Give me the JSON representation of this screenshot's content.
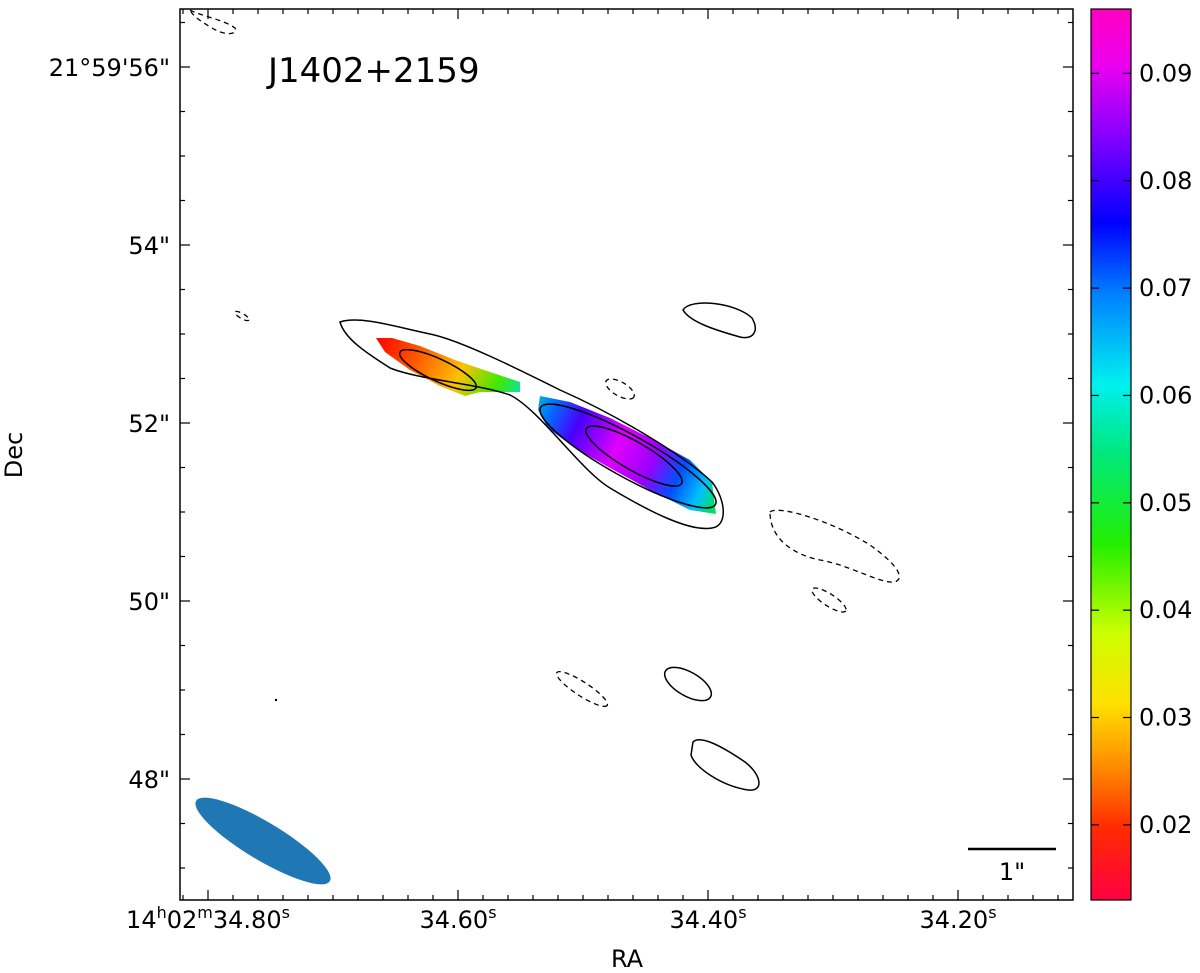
{
  "chart_data": {
    "type": "heatmap",
    "title": "J1402+2159",
    "xlabel": "RA",
    "ylabel": "Dec",
    "x_ticks": [
      {
        "h": "14",
        "m": "02",
        "s": "34.80",
        "value_sec": 34.8
      },
      {
        "s": "34.60",
        "value_sec": 34.6
      },
      {
        "s": "34.40",
        "value_sec": 34.4
      },
      {
        "s": "34.20",
        "value_sec": 34.2
      }
    ],
    "y_ticks": [
      {
        "label": "21°59'56\"",
        "value_arcsec": 56
      },
      {
        "label": "54\"",
        "value_arcsec": 54
      },
      {
        "label": "52\"",
        "value_arcsec": 52
      },
      {
        "label": "50\"",
        "value_arcsec": 50
      },
      {
        "label": "48\"",
        "value_arcsec": 48
      }
    ],
    "colorbar": {
      "colormap": "rainbow (red to magenta)",
      "range": [
        0.013,
        0.096
      ],
      "ticks": [
        "0.02",
        "0.03",
        "0.04",
        "0.05",
        "0.06",
        "0.07",
        "0.08",
        "0.09"
      ],
      "tick_values": [
        0.02,
        0.03,
        0.04,
        0.05,
        0.06,
        0.07,
        0.08,
        0.09
      ]
    },
    "scale_bar_label": "1\"",
    "beam_color": "#1f77b4",
    "contours": {
      "positive_style": "solid",
      "negative_style": "dashed",
      "color": "#000000"
    }
  }
}
